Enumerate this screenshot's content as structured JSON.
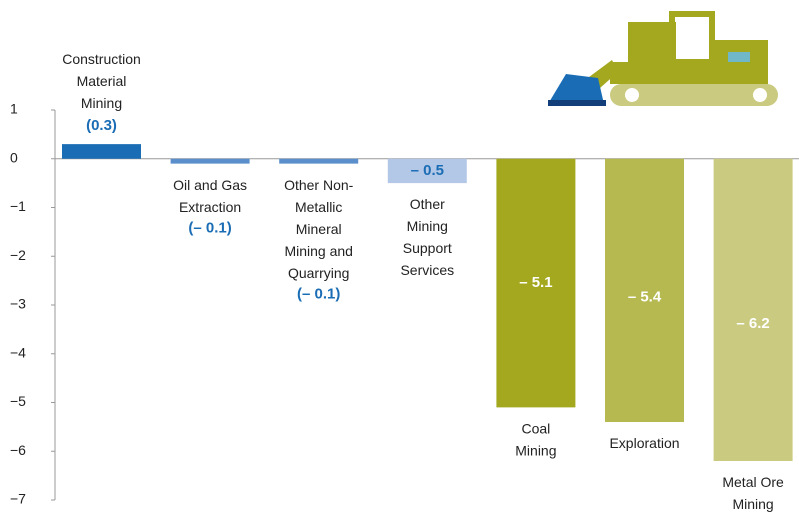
{
  "chart_data": {
    "type": "bar",
    "categories": [
      "Construction\nMaterial\nMining",
      "Oil and Gas\nExtraction",
      "Other Non-\nMetallic\nMineral\nMining and\nQuarrying",
      "Other\nMining\nSupport\nServices",
      "Coal\nMining",
      "Exploration",
      "Metal Ore\nMining"
    ],
    "values": [
      0.3,
      -0.1,
      -0.1,
      -0.5,
      -5.1,
      -5.4,
      -6.2
    ],
    "value_labels": [
      "(0.3)",
      "(– 0.1)",
      "(– 0.1)",
      "– 0.5",
      "– 5.1",
      "– 5.4",
      "– 6.2"
    ],
    "colors": [
      "#1a6db5",
      "#5b8fcb",
      "#5b8fcb",
      "#b3c8e6",
      "#a3a81f",
      "#b6b94f",
      "#caca80"
    ],
    "ylim": [
      -7,
      1
    ],
    "yticks": [
      1,
      0,
      {
        "value": -1,
        "label": "−1"
      },
      {
        "value": -2,
        "label": "−2"
      },
      {
        "value": -3,
        "label": "−3"
      },
      {
        "value": -4,
        "label": "−4"
      },
      {
        "value": -5,
        "label": "−5"
      },
      {
        "value": -6,
        "label": "−6"
      },
      {
        "value": -7,
        "label": "−7"
      }
    ]
  }
}
